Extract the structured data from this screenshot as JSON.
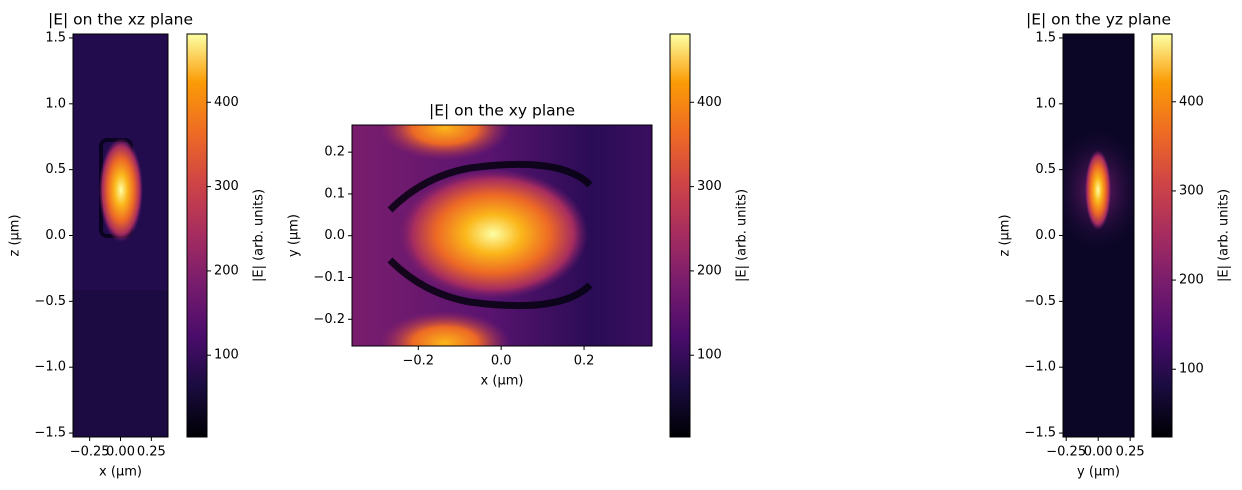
{
  "chart_data": [
    {
      "type": "heatmap",
      "title": "|E| on the xz plane",
      "xlabel": "x (µm)",
      "ylabel": "z (µm)",
      "xlim": [
        -0.385,
        0.385
      ],
      "ylim": [
        -1.53,
        1.53
      ],
      "xticks": [
        {
          "value": -0.25,
          "label": "−0.25"
        },
        {
          "value": 0,
          "label": "0.00"
        },
        {
          "value": 0.25,
          "label": "0.25"
        }
      ],
      "yticks": [
        {
          "value": -1.5,
          "label": "−1.5"
        },
        {
          "value": -1,
          "label": "−1.0"
        },
        {
          "value": -0.5,
          "label": "−0.5"
        },
        {
          "value": 0,
          "label": "0.0"
        },
        {
          "value": 0.5,
          "label": "0.5"
        },
        {
          "value": 1,
          "label": "1.0"
        },
        {
          "value": 1.5,
          "label": "1.5"
        }
      ],
      "colorbar": {
        "label": "|E| (arb. units)",
        "lim": [
          3,
          481
        ],
        "ticks": [
          100,
          200,
          300,
          400
        ]
      }
    },
    {
      "type": "heatmap",
      "title": "|E| on the xy plane",
      "xlabel": "x (µm)",
      "ylabel": "y (µm)",
      "xlim": [
        -0.36,
        0.364
      ],
      "ylim": [
        -0.264,
        0.265
      ],
      "xticks": [
        {
          "value": -0.2,
          "label": "−0.2"
        },
        {
          "value": 0,
          "label": "0.0"
        },
        {
          "value": 0.2,
          "label": "0.2"
        }
      ],
      "yticks": [
        {
          "value": -0.2,
          "label": "−0.2"
        },
        {
          "value": -0.1,
          "label": "−0.1"
        },
        {
          "value": 0,
          "label": "0.0"
        },
        {
          "value": 0.1,
          "label": "0.1"
        },
        {
          "value": 0.2,
          "label": "0.2"
        }
      ],
      "colorbar": {
        "label": "|E| (arb. units)",
        "lim": [
          3,
          481
        ],
        "ticks": [
          100,
          200,
          300,
          400
        ]
      }
    },
    {
      "type": "heatmap",
      "title": "|E| on the yz plane",
      "xlabel": "y (µm)",
      "ylabel": "z (µm)",
      "xlim": [
        -0.275,
        0.28
      ],
      "ylim": [
        -1.53,
        1.53
      ],
      "xticks": [
        {
          "value": -0.25,
          "label": "−0.25"
        },
        {
          "value": 0,
          "label": "0.00"
        },
        {
          "value": 0.25,
          "label": "0.25"
        }
      ],
      "yticks": [
        {
          "value": -1.5,
          "label": "−1.5"
        },
        {
          "value": -1,
          "label": "−1.0"
        },
        {
          "value": -0.5,
          "label": "−0.5"
        },
        {
          "value": 0,
          "label": "0.0"
        },
        {
          "value": 0.5,
          "label": "0.5"
        },
        {
          "value": 1,
          "label": "1.0"
        },
        {
          "value": 1.5,
          "label": "1.5"
        }
      ],
      "colorbar": {
        "label": "|E| (arb. units)",
        "lim": [
          24,
          476
        ],
        "ticks": [
          100,
          200,
          300,
          400
        ]
      }
    }
  ]
}
